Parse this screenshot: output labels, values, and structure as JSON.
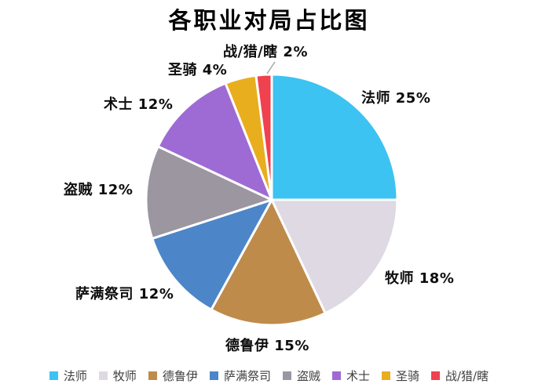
{
  "chart_data": {
    "type": "pie",
    "title": "各职业对局占比图",
    "unit": "%",
    "start_angle_deg": 0,
    "direction": "clockwise",
    "legend_position": "bottom",
    "background_color": "#ffffff",
    "categories": [
      "法师",
      "牧师",
      "德鲁伊",
      "萨满祭司",
      "盗贼",
      "术士",
      "圣骑",
      "战/猎/瞎"
    ],
    "values": [
      25,
      18,
      15,
      12,
      12,
      12,
      4,
      2
    ],
    "colors": [
      "#3cc3f2",
      "#ded9e3",
      "#bf8b4b",
      "#4c86c8",
      "#9b96a0",
      "#9e6bd4",
      "#e9ae1d",
      "#f0414f"
    ],
    "slice_labels": [
      "法师 25%",
      "牧师 18%",
      "德鲁伊 15%",
      "萨满祭司 12%",
      "盗贼 12%",
      "术士 12%",
      "圣骑 4%",
      "战/猎/瞎 2%"
    ],
    "leader_line_color": "#a6a6a6",
    "slice_border_color": "#ffffff"
  }
}
